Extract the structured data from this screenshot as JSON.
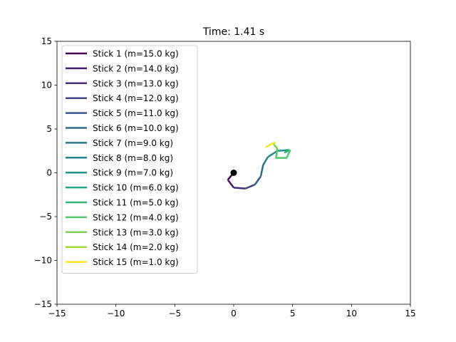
{
  "chart_data": {
    "type": "line",
    "title": "Time: 1.41 s",
    "xlabel": "",
    "ylabel": "",
    "xlim": [
      -15,
      15
    ],
    "ylim": [
      -15,
      15
    ],
    "xticks": [
      -15,
      -10,
      -5,
      0,
      5,
      10,
      15
    ],
    "yticks": [
      -15,
      -10,
      -5,
      0,
      5,
      10,
      15
    ],
    "xtick_labels": [
      "−15",
      "−10",
      "−5",
      "0",
      "5",
      "10",
      "15"
    ],
    "ytick_labels": [
      "−15",
      "−10",
      "−5",
      "0",
      "5",
      "10",
      "15"
    ],
    "grid": false,
    "legend_position": "upper-left",
    "pivot": {
      "x": 0.0,
      "y": 0.0,
      "color": "#000000"
    },
    "series": [
      {
        "name": "Stick 1 (m=15.0 kg)",
        "color": "#440154",
        "x": [
          0.0,
          -0.5
        ],
        "y": [
          0.0,
          -0.8
        ]
      },
      {
        "name": "Stick 2 (m=14.0 kg)",
        "color": "#481a6c",
        "x": [
          -0.5,
          0.0
        ],
        "y": [
          -0.8,
          -1.7
        ]
      },
      {
        "name": "Stick 3 (m=13.0 kg)",
        "color": "#472f7d",
        "x": [
          0.0,
          1.0
        ],
        "y": [
          -1.7,
          -1.8
        ]
      },
      {
        "name": "Stick 4 (m=12.0 kg)",
        "color": "#414487",
        "x": [
          1.0,
          1.8
        ],
        "y": [
          -1.8,
          -1.35
        ]
      },
      {
        "name": "Stick 5 (m=11.0 kg)",
        "color": "#39568c",
        "x": [
          1.8,
          2.3
        ],
        "y": [
          -1.35,
          -0.4
        ]
      },
      {
        "name": "Stick 6 (m=10.0 kg)",
        "color": "#31688e",
        "x": [
          2.3,
          2.5
        ],
        "y": [
          -0.4,
          0.9
        ]
      },
      {
        "name": "Stick 7 (m=9.0 kg)",
        "color": "#2a788e",
        "x": [
          2.5,
          2.9
        ],
        "y": [
          0.9,
          1.8
        ]
      },
      {
        "name": "Stick 8 (m=8.0 kg)",
        "color": "#23888e",
        "x": [
          2.9,
          3.7
        ],
        "y": [
          1.8,
          2.5
        ]
      },
      {
        "name": "Stick 9 (m=7.0 kg)",
        "color": "#1f988b",
        "x": [
          3.7,
          4.7
        ],
        "y": [
          2.5,
          2.6
        ]
      },
      {
        "name": "Stick 10 (m=6.0 kg)",
        "color": "#22a884",
        "x": [
          4.7,
          4.3
        ],
        "y": [
          2.6,
          2.3
        ]
      },
      {
        "name": "Stick 11 (m=5.0 kg)",
        "color": "#35b779",
        "x": [
          4.3,
          4.8
        ],
        "y": [
          2.3,
          2.6
        ]
      },
      {
        "name": "Stick 12 (m=4.0 kg)",
        "color": "#54c568",
        "x": [
          4.8,
          4.5,
          3.6,
          3.7
        ],
        "y": [
          2.6,
          1.7,
          1.7,
          2.8
        ]
      },
      {
        "name": "Stick 13 (m=3.0 kg)",
        "color": "#7ad151",
        "x": [
          3.7,
          3.4
        ],
        "y": [
          2.8,
          3.2
        ]
      },
      {
        "name": "Stick 14 (m=2.0 kg)",
        "color": "#a5db36",
        "x": [
          3.4,
          3.5
        ],
        "y": [
          3.2,
          3.5
        ]
      },
      {
        "name": "Stick 15 (m=1.0 kg)",
        "color": "#fde725",
        "x": [
          3.5,
          2.7
        ],
        "y": [
          3.5,
          2.9
        ]
      }
    ]
  }
}
